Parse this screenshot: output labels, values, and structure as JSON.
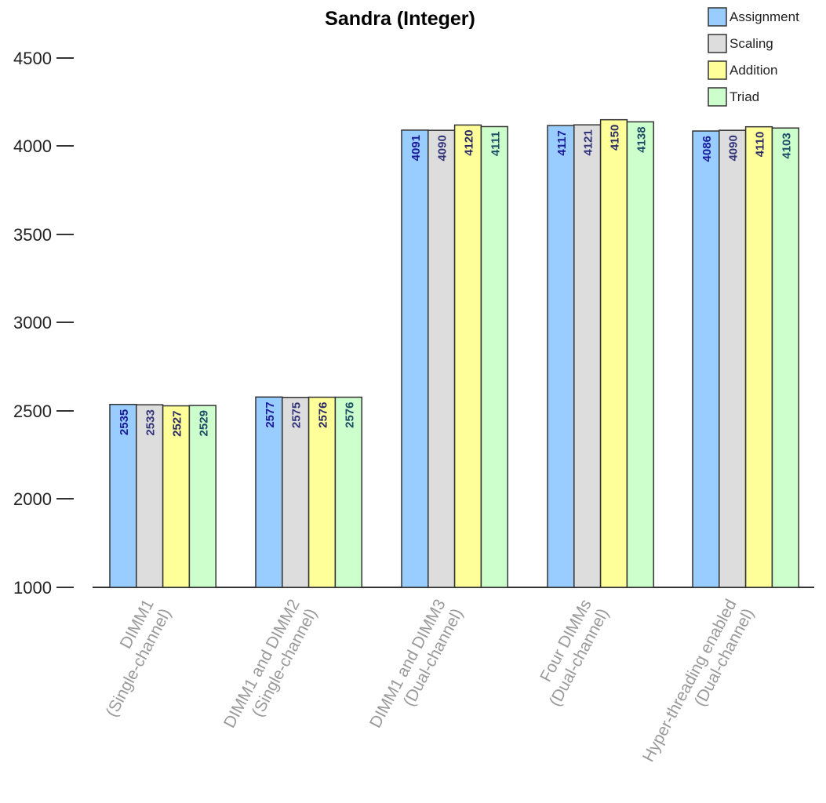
{
  "chart_data": {
    "type": "bar",
    "title": "Sandra (Integer)",
    "xlabel": "",
    "ylabel": "",
    "ylim": [
      1000,
      4500
    ],
    "yticks": [
      "1000",
      "2000",
      "2500",
      "3000",
      "3500",
      "4000",
      "4500"
    ],
    "legend_position": "top-right",
    "grid": false,
    "categories": [
      [
        "DIMM1",
        "(Single-channel)"
      ],
      [
        "DIMM1 and DIMM2",
        "(Single-channel)"
      ],
      [
        "DIMM1 and DIMM3",
        "(Dual-channel)"
      ],
      [
        "Four DIMMs",
        "(Dual-channel)"
      ],
      [
        "Hyper-threading enabled",
        "(Dual-channel)"
      ]
    ],
    "series": [
      {
        "name": "Assignment",
        "color": "#99ccff",
        "label_color": "#1a1a99",
        "values": [
          2535,
          2577,
          4091,
          4117,
          4086
        ]
      },
      {
        "name": "Scaling",
        "color": "#dddddd",
        "label_color": "#33337a",
        "values": [
          2533,
          2575,
          4090,
          4121,
          4090
        ]
      },
      {
        "name": "Addition",
        "color": "#ffff99",
        "label_color": "#2a2a66",
        "values": [
          2527,
          2576,
          4120,
          4150,
          4110
        ]
      },
      {
        "name": "Triad",
        "color": "#ccffcc",
        "label_color": "#1a4d66",
        "values": [
          2529,
          2576,
          4111,
          4138,
          4103
        ]
      }
    ]
  }
}
